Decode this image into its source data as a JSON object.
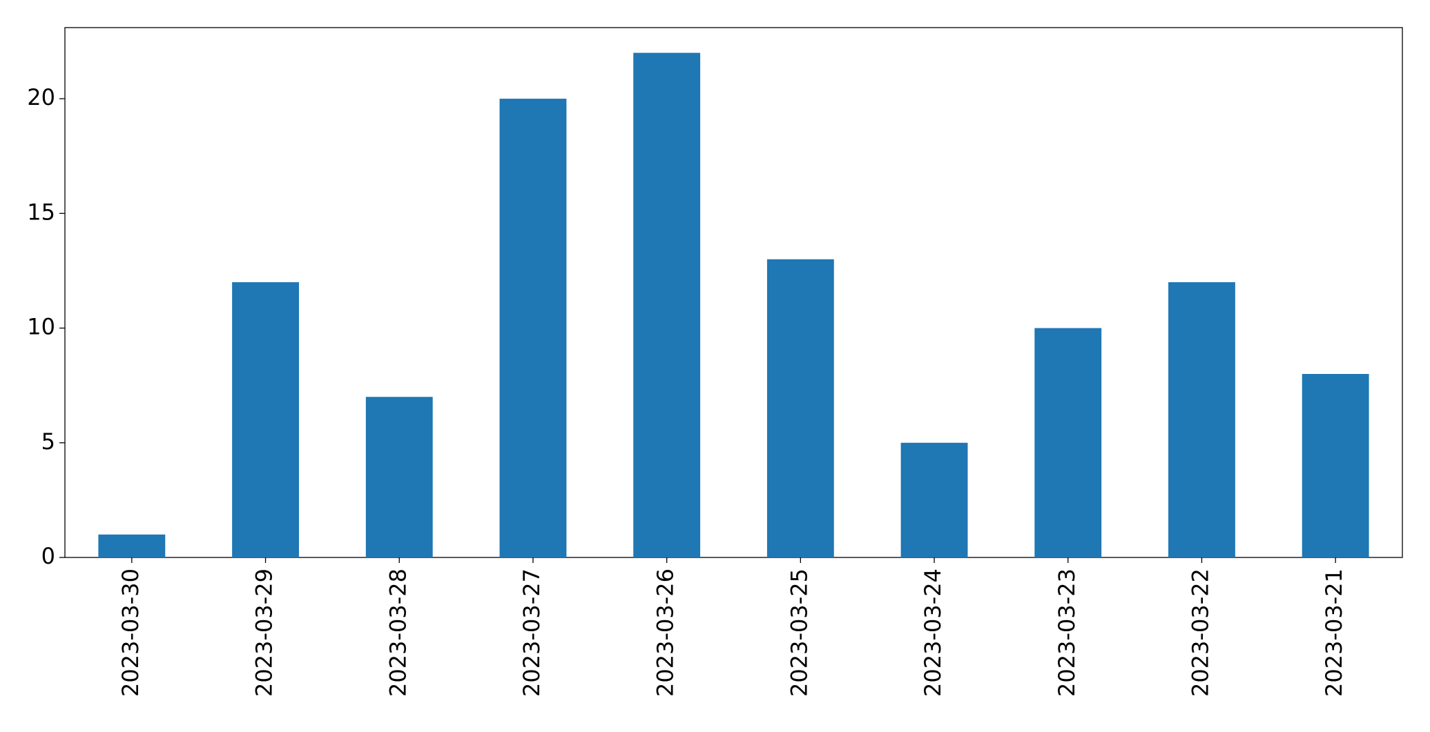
{
  "chart_data": {
    "type": "bar",
    "categories": [
      "2023-03-30",
      "2023-03-29",
      "2023-03-28",
      "2023-03-27",
      "2023-03-26",
      "2023-03-25",
      "2023-03-24",
      "2023-03-23",
      "2023-03-22",
      "2023-03-21"
    ],
    "values": [
      1,
      12,
      7,
      20,
      22,
      13,
      5,
      10,
      12,
      8
    ],
    "color": "#1f77b4",
    "ylim": [
      0,
      23.1
    ],
    "yticks": [
      0,
      5,
      10,
      15,
      20
    ],
    "grid": false
  }
}
